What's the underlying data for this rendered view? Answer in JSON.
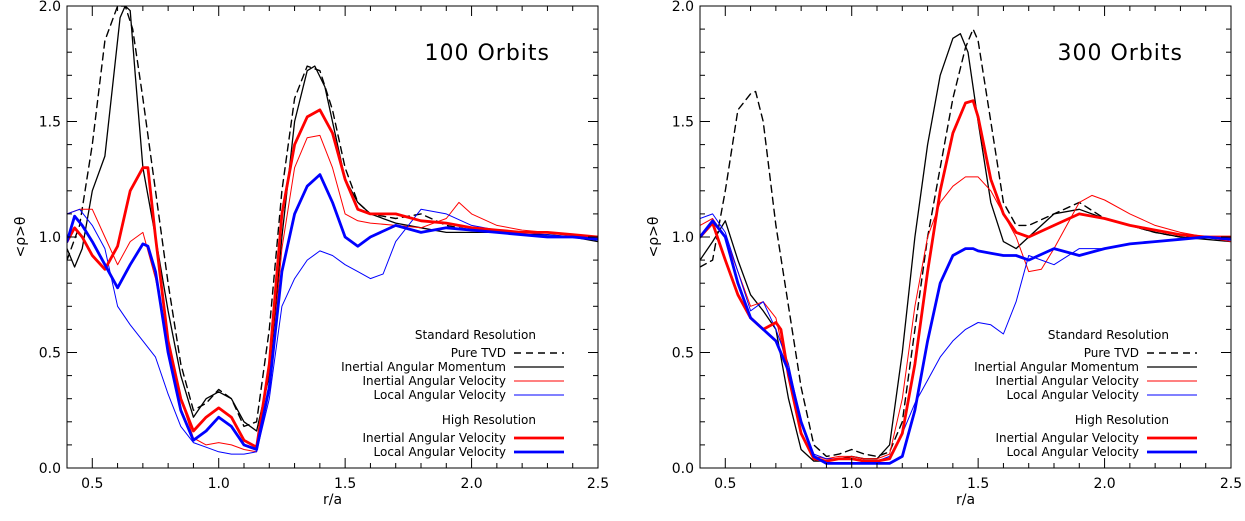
{
  "chart_data": [
    {
      "type": "line",
      "title": "100 Orbits",
      "xlabel": "r/a",
      "ylabel": "<ρ>θ",
      "xlim": [
        0.4,
        2.5
      ],
      "ylim": [
        0.0,
        2.0
      ],
      "xticks": [
        "0.5",
        "1.0",
        "1.5",
        "2.0",
        "2.5"
      ],
      "yticks": [
        "0.0",
        "0.5",
        "1.0",
        "1.5",
        "2.0"
      ],
      "grid": false,
      "legend_position": "bottom-right",
      "legend": {
        "standard_heading": "Standard Resolution",
        "high_heading": "High Resolution",
        "entries": [
          {
            "group": "standard",
            "label": "Pure TVD",
            "color": "#000000",
            "width": 1.4,
            "dash": "7,5"
          },
          {
            "group": "standard",
            "label": "Inertial Angular Momentum",
            "color": "#000000",
            "width": 1.3,
            "dash": ""
          },
          {
            "group": "standard",
            "label": "Inertial Angular Velocity",
            "color": "#ff0000",
            "width": 1.0,
            "dash": ""
          },
          {
            "group": "standard",
            "label": "Local  Angular Velocity",
            "color": "#0000ff",
            "width": 1.0,
            "dash": ""
          },
          {
            "group": "high",
            "label": "Inertial Angular Velocity",
            "color": "#ff0000",
            "width": 2.8,
            "dash": ""
          },
          {
            "group": "high",
            "label": "Local  Angular Velocity",
            "color": "#0000ff",
            "width": 2.8,
            "dash": ""
          }
        ]
      },
      "series": [
        {
          "x": [
            0.4,
            0.45,
            0.5,
            0.55,
            0.6,
            0.63,
            0.66,
            0.7,
            0.75,
            0.8,
            0.85,
            0.9,
            0.95,
            1.0,
            1.05,
            1.1,
            1.15,
            1.2,
            1.25,
            1.3,
            1.35,
            1.4,
            1.45,
            1.5,
            1.55,
            1.6,
            1.7,
            1.8,
            1.9,
            2.0,
            2.1,
            2.2,
            2.3,
            2.4,
            2.5
          ],
          "y": [
            0.9,
            1.05,
            1.4,
            1.85,
            2.0,
            2.0,
            1.9,
            1.6,
            1.2,
            0.8,
            0.45,
            0.25,
            0.28,
            0.34,
            0.3,
            0.18,
            0.2,
            0.6,
            1.2,
            1.6,
            1.74,
            1.72,
            1.55,
            1.3,
            1.15,
            1.1,
            1.08,
            1.1,
            1.05,
            1.03,
            1.02,
            1.01,
            1.0,
            1.0,
            1.0
          ]
        },
        {
          "x": [
            0.4,
            0.43,
            0.46,
            0.5,
            0.55,
            0.58,
            0.61,
            0.63,
            0.65,
            0.67,
            0.7,
            0.75,
            0.8,
            0.85,
            0.9,
            0.95,
            1.0,
            1.05,
            1.1,
            1.15,
            1.2,
            1.25,
            1.3,
            1.35,
            1.38,
            1.42,
            1.46,
            1.5,
            1.55,
            1.6,
            1.7,
            1.8,
            1.9,
            2.0,
            2.1,
            2.2,
            2.3,
            2.4,
            2.5
          ],
          "y": [
            0.95,
            0.87,
            0.95,
            1.2,
            1.35,
            1.65,
            1.95,
            2.0,
            1.98,
            1.7,
            1.3,
            1.0,
            0.68,
            0.4,
            0.22,
            0.3,
            0.33,
            0.3,
            0.2,
            0.16,
            0.4,
            1.0,
            1.5,
            1.72,
            1.74,
            1.65,
            1.45,
            1.25,
            1.15,
            1.1,
            1.06,
            1.04,
            1.02,
            1.02,
            1.02,
            1.01,
            1.01,
            1.0,
            0.98
          ]
        },
        {
          "x": [
            0.4,
            0.45,
            0.5,
            0.55,
            0.6,
            0.65,
            0.7,
            0.75,
            0.8,
            0.85,
            0.9,
            0.95,
            1.0,
            1.05,
            1.1,
            1.15,
            1.2,
            1.25,
            1.3,
            1.35,
            1.4,
            1.45,
            1.5,
            1.55,
            1.6,
            1.7,
            1.8,
            1.9,
            1.95,
            2.0,
            2.1,
            2.2,
            2.3,
            2.4,
            2.5
          ],
          "y": [
            1.1,
            1.12,
            1.12,
            1.0,
            0.88,
            0.98,
            1.02,
            0.82,
            0.55,
            0.3,
            0.13,
            0.1,
            0.11,
            0.1,
            0.08,
            0.07,
            0.35,
            0.95,
            1.3,
            1.43,
            1.44,
            1.3,
            1.1,
            1.07,
            1.06,
            1.05,
            1.04,
            1.08,
            1.15,
            1.1,
            1.05,
            1.03,
            1.02,
            1.01,
            1.0
          ]
        },
        {
          "x": [
            0.4,
            0.45,
            0.5,
            0.55,
            0.6,
            0.65,
            0.7,
            0.75,
            0.8,
            0.85,
            0.9,
            0.95,
            1.0,
            1.05,
            1.1,
            1.15,
            1.2,
            1.25,
            1.3,
            1.35,
            1.4,
            1.45,
            1.5,
            1.55,
            1.6,
            1.65,
            1.7,
            1.8,
            1.9,
            2.0,
            2.1,
            2.2,
            2.3,
            2.4,
            2.5
          ],
          "y": [
            1.1,
            1.12,
            1.05,
            0.95,
            0.7,
            0.62,
            0.55,
            0.48,
            0.32,
            0.18,
            0.11,
            0.09,
            0.07,
            0.06,
            0.06,
            0.07,
            0.3,
            0.7,
            0.82,
            0.9,
            0.94,
            0.92,
            0.88,
            0.85,
            0.82,
            0.84,
            0.98,
            1.12,
            1.1,
            1.05,
            1.03,
            1.02,
            1.01,
            1.0,
            1.0
          ]
        },
        {
          "x": [
            0.4,
            0.43,
            0.46,
            0.5,
            0.55,
            0.6,
            0.65,
            0.7,
            0.72,
            0.75,
            0.8,
            0.85,
            0.9,
            0.95,
            1.0,
            1.05,
            1.1,
            1.15,
            1.2,
            1.25,
            1.3,
            1.35,
            1.4,
            1.45,
            1.5,
            1.55,
            1.6,
            1.7,
            1.8,
            1.9,
            2.0,
            2.1,
            2.2,
            2.3,
            2.4,
            2.5
          ],
          "y": [
            0.98,
            1.04,
            1.0,
            0.92,
            0.86,
            0.96,
            1.2,
            1.3,
            1.3,
            1.0,
            0.55,
            0.3,
            0.16,
            0.22,
            0.26,
            0.22,
            0.12,
            0.09,
            0.45,
            1.1,
            1.4,
            1.52,
            1.55,
            1.45,
            1.25,
            1.12,
            1.1,
            1.1,
            1.07,
            1.06,
            1.04,
            1.03,
            1.02,
            1.02,
            1.01,
            1.0
          ]
        },
        {
          "x": [
            0.4,
            0.43,
            0.46,
            0.5,
            0.55,
            0.6,
            0.65,
            0.7,
            0.72,
            0.75,
            0.8,
            0.85,
            0.9,
            0.95,
            1.0,
            1.05,
            1.1,
            1.15,
            1.2,
            1.25,
            1.3,
            1.35,
            1.4,
            1.45,
            1.5,
            1.55,
            1.6,
            1.7,
            1.8,
            1.9,
            2.0,
            2.1,
            2.2,
            2.3,
            2.4,
            2.5
          ],
          "y": [
            0.98,
            1.09,
            1.05,
            0.98,
            0.88,
            0.78,
            0.88,
            0.97,
            0.96,
            0.85,
            0.5,
            0.25,
            0.12,
            0.16,
            0.22,
            0.18,
            0.1,
            0.08,
            0.35,
            0.85,
            1.1,
            1.22,
            1.27,
            1.15,
            1.0,
            0.96,
            1.0,
            1.05,
            1.02,
            1.04,
            1.03,
            1.02,
            1.01,
            1.0,
            1.0,
            0.99
          ]
        }
      ]
    },
    {
      "type": "line",
      "title": "300 Orbits",
      "xlabel": "r/a",
      "ylabel": "<ρ>θ",
      "xlim": [
        0.4,
        2.5
      ],
      "ylim": [
        0.0,
        2.0
      ],
      "xticks": [
        "0.5",
        "1.0",
        "1.5",
        "2.0",
        "2.5"
      ],
      "yticks": [
        "0.0",
        "0.5",
        "1.0",
        "1.5",
        "2.0"
      ],
      "grid": false,
      "legend_position": "bottom-right",
      "legend": {
        "standard_heading": "Standard Resolution",
        "high_heading": "High Resolution",
        "entries": [
          {
            "group": "standard",
            "label": "Pure TVD",
            "color": "#000000",
            "width": 1.4,
            "dash": "7,5"
          },
          {
            "group": "standard",
            "label": "Inertial Angular Momentum",
            "color": "#000000",
            "width": 1.3,
            "dash": ""
          },
          {
            "group": "standard",
            "label": "Inertial Angular Velocity",
            "color": "#ff0000",
            "width": 1.0,
            "dash": ""
          },
          {
            "group": "standard",
            "label": "Local  Angular Velocity",
            "color": "#0000ff",
            "width": 1.0,
            "dash": ""
          },
          {
            "group": "high",
            "label": "Inertial Angular Velocity",
            "color": "#ff0000",
            "width": 2.8,
            "dash": ""
          },
          {
            "group": "high",
            "label": "Local  Angular Velocity",
            "color": "#0000ff",
            "width": 2.8,
            "dash": ""
          }
        ]
      },
      "series": [
        {
          "x": [
            0.4,
            0.45,
            0.5,
            0.55,
            0.6,
            0.62,
            0.65,
            0.7,
            0.75,
            0.8,
            0.85,
            0.9,
            0.95,
            1.0,
            1.05,
            1.1,
            1.15,
            1.2,
            1.25,
            1.3,
            1.35,
            1.4,
            1.45,
            1.48,
            1.5,
            1.55,
            1.6,
            1.65,
            1.7,
            1.8,
            1.9,
            2.0,
            2.1,
            2.2,
            2.3,
            2.4,
            2.5
          ],
          "y": [
            0.87,
            0.9,
            1.2,
            1.55,
            1.62,
            1.63,
            1.5,
            1.05,
            0.7,
            0.35,
            0.1,
            0.05,
            0.06,
            0.08,
            0.06,
            0.05,
            0.07,
            0.2,
            0.6,
            1.0,
            1.3,
            1.6,
            1.82,
            1.9,
            1.85,
            1.5,
            1.15,
            1.05,
            1.05,
            1.1,
            1.15,
            1.08,
            1.05,
            1.02,
            1.0,
            1.0,
            1.0
          ]
        },
        {
          "x": [
            0.4,
            0.45,
            0.5,
            0.55,
            0.6,
            0.65,
            0.7,
            0.75,
            0.8,
            0.85,
            0.9,
            0.95,
            1.0,
            1.05,
            1.1,
            1.15,
            1.2,
            1.25,
            1.3,
            1.35,
            1.4,
            1.43,
            1.46,
            1.5,
            1.55,
            1.6,
            1.65,
            1.7,
            1.8,
            1.9,
            2.0,
            2.1,
            2.2,
            2.3,
            2.4,
            2.5
          ],
          "y": [
            0.9,
            0.98,
            1.07,
            0.9,
            0.75,
            0.68,
            0.6,
            0.3,
            0.08,
            0.03,
            0.03,
            0.04,
            0.05,
            0.04,
            0.04,
            0.1,
            0.5,
            1.0,
            1.4,
            1.7,
            1.86,
            1.88,
            1.8,
            1.5,
            1.15,
            0.98,
            0.95,
            1.0,
            1.1,
            1.12,
            1.08,
            1.05,
            1.02,
            1.0,
            0.99,
            0.98
          ]
        },
        {
          "x": [
            0.4,
            0.45,
            0.5,
            0.55,
            0.6,
            0.65,
            0.7,
            0.75,
            0.8,
            0.85,
            0.9,
            0.95,
            1.0,
            1.05,
            1.1,
            1.15,
            1.2,
            1.25,
            1.3,
            1.35,
            1.4,
            1.45,
            1.5,
            1.55,
            1.6,
            1.65,
            1.7,
            1.75,
            1.8,
            1.9,
            1.95,
            2.0,
            2.1,
            2.2,
            2.3,
            2.4,
            2.5
          ],
          "y": [
            1.05,
            1.08,
            1.0,
            0.85,
            0.7,
            0.72,
            0.65,
            0.4,
            0.15,
            0.05,
            0.04,
            0.05,
            0.05,
            0.04,
            0.04,
            0.06,
            0.3,
            0.7,
            1.0,
            1.15,
            1.22,
            1.26,
            1.26,
            1.2,
            1.1,
            1.0,
            0.85,
            0.86,
            0.95,
            1.15,
            1.18,
            1.16,
            1.1,
            1.05,
            1.02,
            1.0,
            0.98
          ]
        },
        {
          "x": [
            0.4,
            0.45,
            0.5,
            0.55,
            0.6,
            0.65,
            0.7,
            0.75,
            0.8,
            0.85,
            0.9,
            0.95,
            1.0,
            1.05,
            1.1,
            1.15,
            1.2,
            1.25,
            1.3,
            1.35,
            1.4,
            1.45,
            1.5,
            1.55,
            1.6,
            1.65,
            1.7,
            1.75,
            1.8,
            1.9,
            2.0,
            2.1,
            2.2,
            2.3,
            2.4,
            2.5
          ],
          "y": [
            1.08,
            1.1,
            1.02,
            0.85,
            0.68,
            0.72,
            0.6,
            0.45,
            0.2,
            0.06,
            0.04,
            0.04,
            0.04,
            0.03,
            0.03,
            0.05,
            0.15,
            0.28,
            0.38,
            0.48,
            0.55,
            0.6,
            0.63,
            0.62,
            0.58,
            0.72,
            0.92,
            0.9,
            0.88,
            0.95,
            0.95,
            0.97,
            0.98,
            0.99,
            1.0,
            1.0
          ]
        },
        {
          "x": [
            0.4,
            0.45,
            0.5,
            0.55,
            0.6,
            0.65,
            0.7,
            0.72,
            0.75,
            0.8,
            0.85,
            0.9,
            0.95,
            1.0,
            1.05,
            1.1,
            1.15,
            1.2,
            1.25,
            1.3,
            1.35,
            1.4,
            1.45,
            1.48,
            1.5,
            1.55,
            1.6,
            1.65,
            1.7,
            1.8,
            1.9,
            2.0,
            2.1,
            2.2,
            2.3,
            2.4,
            2.5
          ],
          "y": [
            1.0,
            1.06,
            0.9,
            0.75,
            0.65,
            0.6,
            0.63,
            0.6,
            0.4,
            0.15,
            0.04,
            0.03,
            0.04,
            0.04,
            0.03,
            0.03,
            0.04,
            0.15,
            0.45,
            0.85,
            1.2,
            1.45,
            1.58,
            1.59,
            1.52,
            1.25,
            1.1,
            1.02,
            1.0,
            1.05,
            1.1,
            1.08,
            1.05,
            1.03,
            1.01,
            1.0,
            1.0
          ]
        },
        {
          "x": [
            0.4,
            0.45,
            0.5,
            0.55,
            0.6,
            0.65,
            0.7,
            0.75,
            0.8,
            0.85,
            0.9,
            0.95,
            1.0,
            1.05,
            1.1,
            1.15,
            1.2,
            1.25,
            1.3,
            1.35,
            1.4,
            1.45,
            1.48,
            1.5,
            1.55,
            1.6,
            1.65,
            1.7,
            1.8,
            1.9,
            2.0,
            2.1,
            2.2,
            2.3,
            2.4,
            2.5
          ],
          "y": [
            1.0,
            1.07,
            1.0,
            0.8,
            0.65,
            0.6,
            0.55,
            0.42,
            0.2,
            0.05,
            0.02,
            0.02,
            0.02,
            0.02,
            0.02,
            0.02,
            0.05,
            0.25,
            0.55,
            0.8,
            0.92,
            0.95,
            0.95,
            0.94,
            0.93,
            0.92,
            0.92,
            0.9,
            0.95,
            0.92,
            0.95,
            0.97,
            0.98,
            0.99,
            1.0,
            0.99
          ]
        }
      ]
    }
  ]
}
